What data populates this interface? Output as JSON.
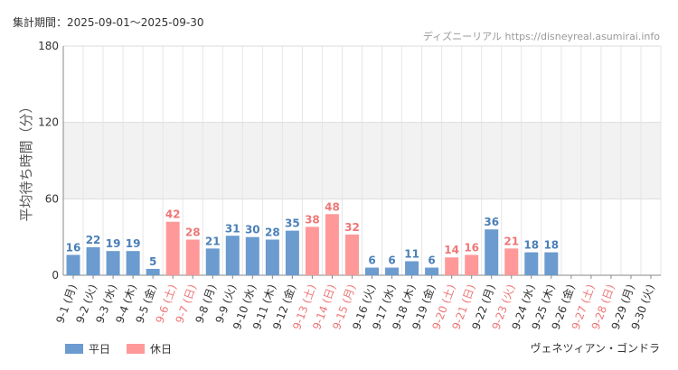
{
  "header": {
    "period": "集計期間：2025-09-01～2025-09-30"
  },
  "source": {
    "text": "ディズニーリアル https://disneyreal.asumirai.info"
  },
  "attraction": {
    "name": "ヴェネツィアン・ゴンドラ"
  },
  "legend": {
    "weekday": "平日",
    "holiday": "休日"
  },
  "colors": {
    "weekday": "#6b9bcf",
    "holiday": "#ff9999",
    "weekday_text": "#4a7fb8",
    "holiday_text": "#ee7777",
    "band": "#f2f2f2"
  },
  "chart_data": {
    "type": "bar",
    "ylabel": "平均待ち時間（分）",
    "xlabel": "",
    "ylim": [
      0,
      180
    ],
    "yticks": [
      0,
      60,
      120,
      180
    ],
    "grid": true,
    "legend_position": "bottom-left",
    "categories": [
      "9-1 (月)",
      "9-2 (火)",
      "9-3 (水)",
      "9-4 (木)",
      "9-5 (金)",
      "9-6 (土)",
      "9-7 (日)",
      "9-8 (月)",
      "9-9 (火)",
      "9-10 (水)",
      "9-11 (木)",
      "9-12 (金)",
      "9-13 (土)",
      "9-14 (日)",
      "9-15 (月)",
      "9-16 (火)",
      "9-17 (水)",
      "9-18 (木)",
      "9-19 (金)",
      "9-20 (土)",
      "9-21 (日)",
      "9-22 (月)",
      "9-23 (火)",
      "9-24 (水)",
      "9-25 (木)",
      "9-26 (金)",
      "9-27 (土)",
      "9-28 (日)",
      "9-29 (月)",
      "9-30 (火)"
    ],
    "values": [
      16,
      22,
      19,
      19,
      5,
      42,
      28,
      21,
      31,
      30,
      28,
      35,
      38,
      48,
      32,
      6,
      6,
      11,
      6,
      14,
      16,
      36,
      21,
      18,
      18,
      null,
      null,
      null,
      null,
      null
    ],
    "day_type": [
      "weekday",
      "weekday",
      "weekday",
      "weekday",
      "weekday",
      "holiday",
      "holiday",
      "weekday",
      "weekday",
      "weekday",
      "weekday",
      "weekday",
      "holiday",
      "holiday",
      "holiday",
      "weekday",
      "weekday",
      "weekday",
      "weekday",
      "holiday",
      "holiday",
      "weekday",
      "holiday",
      "weekday",
      "weekday",
      "weekday",
      "holiday",
      "holiday",
      "weekday",
      "weekday"
    ]
  }
}
